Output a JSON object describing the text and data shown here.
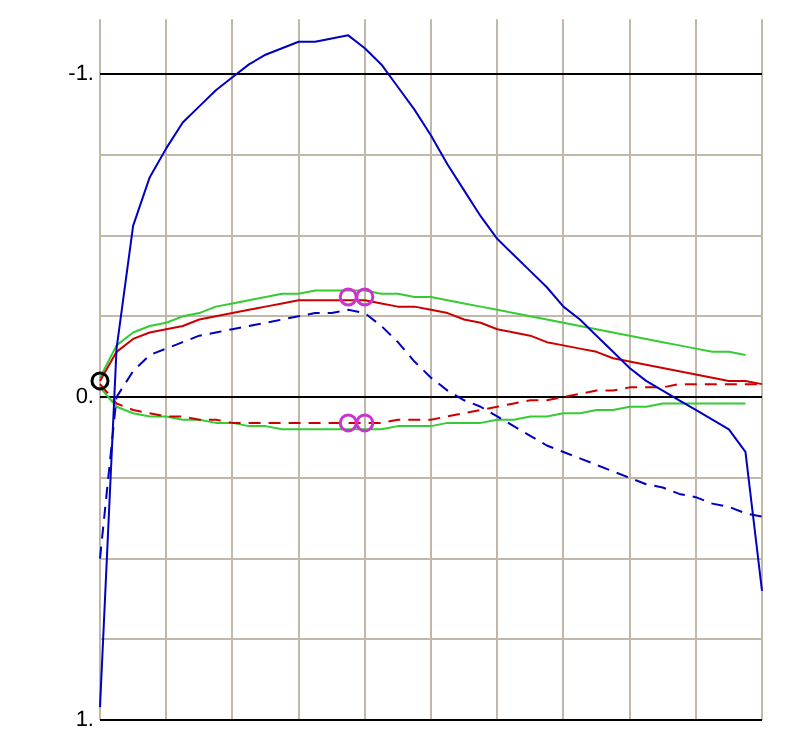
{
  "chart_data": {
    "type": "line",
    "ylim": [
      1,
      -1.17
    ],
    "tick_labels": "y",
    "grid": true,
    "marker": "none",
    "categories": [
      null,
      null,
      null,
      null,
      null,
      null,
      null,
      null,
      null,
      null,
      null,
      null,
      null,
      null,
      null,
      null,
      null,
      null,
      null,
      null,
      null,
      null,
      null,
      null,
      null,
      null,
      null,
      null,
      null,
      null,
      null,
      null,
      null,
      null,
      null,
      null,
      null,
      null,
      null,
      null,
      null
    ],
    "yticks": [
      {
        "value": -1,
        "label": "-1."
      },
      {
        "value": -0.75,
        "label": null
      },
      {
        "value": -0.5,
        "label": null
      },
      {
        "value": -0.25,
        "label": null
      },
      {
        "value": 0,
        "label": "0."
      },
      {
        "value": 0.25,
        "label": null
      },
      {
        "value": 0.5,
        "label": null
      },
      {
        "value": 0.75,
        "label": null
      },
      {
        "value": 1,
        "label": "1."
      }
    ],
    "series": [
      {
        "color": "#0000c0",
        "line_style": "solid",
        "values": [
          0.96,
          -0.15,
          -0.53,
          -0.68,
          -0.77,
          -0.85,
          -0.9,
          -0.95,
          -0.99,
          -1.03,
          -1.06,
          -1.08,
          -1.1,
          -1.1,
          -1.11,
          -1.12,
          -1.08,
          -1.03,
          -0.96,
          -0.89,
          -0.81,
          -0.72,
          -0.64,
          -0.56,
          -0.49,
          -0.44,
          -0.39,
          -0.34,
          -0.28,
          -0.24,
          -0.19,
          -0.14,
          -0.09,
          -0.05,
          -0.02,
          0.01,
          0.04,
          0.07,
          0.1,
          0.17,
          0.6
        ]
      },
      {
        "color": "#0000c0",
        "line_style": "dashed",
        "values": [
          0.5,
          0,
          -0.08,
          -0.13,
          -0.15,
          -0.17,
          -0.19,
          -0.2,
          -0.21,
          -0.22,
          -0.23,
          -0.24,
          -0.25,
          -0.26,
          -0.26,
          -0.27,
          -0.26,
          -0.22,
          -0.17,
          -0.11,
          -0.06,
          -0.02,
          0.01,
          0.03,
          0.06,
          0.09,
          0.12,
          0.15,
          0.17,
          0.19,
          0.21,
          0.23,
          0.25,
          0.27,
          0.28,
          0.3,
          0.31,
          0.33,
          0.34,
          0.36,
          0.37
        ]
      },
      {
        "color": "#cc0000",
        "line_style": "solid",
        "values": [
          -0.05,
          -0.14,
          -0.18,
          -0.2,
          -0.21,
          -0.22,
          -0.24,
          -0.25,
          -0.26,
          -0.27,
          -0.28,
          -0.29,
          -0.3,
          -0.3,
          -0.3,
          -0.3,
          -0.3,
          -0.29,
          -0.28,
          -0.28,
          -0.27,
          -0.26,
          -0.24,
          -0.23,
          -0.21,
          -0.2,
          -0.19,
          -0.17,
          -0.16,
          -0.15,
          -0.14,
          -0.12,
          -0.11,
          -0.1,
          -0.09,
          -0.08,
          -0.07,
          -0.06,
          -0.05,
          -0.05,
          -0.04
        ]
      },
      {
        "color": "#cc0000",
        "line_style": "dashed",
        "values": [
          -0.04,
          0.02,
          0.04,
          0.05,
          0.06,
          0.06,
          0.07,
          0.07,
          0.08,
          0.08,
          0.08,
          0.08,
          0.08,
          0.08,
          0.08,
          0.08,
          0.08,
          0.08,
          0.07,
          0.07,
          0.07,
          0.06,
          0.05,
          0.04,
          0.03,
          0.02,
          0.01,
          0.01,
          0,
          -0.01,
          -0.02,
          -0.02,
          -0.03,
          -0.03,
          -0.03,
          -0.04,
          -0.04,
          -0.04,
          -0.04,
          -0.04,
          -0.04
        ]
      },
      {
        "color": "#33cc33",
        "line_style": "solid",
        "values": [
          -0.06,
          -0.16,
          -0.2,
          -0.22,
          -0.23,
          -0.25,
          -0.26,
          -0.28,
          -0.29,
          -0.3,
          -0.31,
          -0.32,
          -0.32,
          -0.33,
          -0.33,
          -0.33,
          -0.33,
          -0.32,
          -0.32,
          -0.31,
          -0.31,
          -0.3,
          -0.29,
          -0.28,
          -0.27,
          -0.26,
          -0.25,
          -0.24,
          -0.23,
          -0.22,
          -0.21,
          -0.2,
          -0.19,
          -0.18,
          -0.17,
          -0.16,
          -0.15,
          -0.14,
          -0.14,
          -0.13,
          null
        ]
      },
      {
        "color": "#33cc33",
        "line_style": "solid",
        "values": [
          -0.03,
          0.03,
          0.05,
          0.06,
          0.06,
          0.07,
          0.07,
          0.08,
          0.08,
          0.09,
          0.09,
          0.1,
          0.1,
          0.1,
          0.1,
          0.1,
          0.1,
          0.1,
          0.09,
          0.09,
          0.09,
          0.08,
          0.08,
          0.08,
          0.07,
          0.07,
          0.06,
          0.06,
          0.05,
          0.05,
          0.04,
          0.04,
          0.03,
          0.03,
          0.02,
          0.02,
          0.02,
          0.02,
          0.02,
          0.02,
          null
        ]
      },
      {
        "type": "scatter",
        "marker": "circle",
        "color": "#cc33cc",
        "values": [
          null,
          null,
          null,
          null,
          null,
          null,
          null,
          null,
          null,
          null,
          null,
          null,
          null,
          null,
          null,
          -0.31,
          -0.31,
          null,
          null,
          null,
          null,
          null,
          null,
          null,
          null,
          null,
          null,
          null,
          null,
          null,
          null,
          null,
          null,
          null,
          null,
          null,
          null,
          null,
          null,
          null,
          null
        ]
      },
      {
        "type": "scatter",
        "marker": "circle",
        "color": "#cc33cc",
        "values": [
          null,
          null,
          null,
          null,
          null,
          null,
          null,
          null,
          null,
          null,
          null,
          null,
          null,
          null,
          null,
          0.08,
          0.08,
          null,
          null,
          null,
          null,
          null,
          null,
          null,
          null,
          null,
          null,
          null,
          null,
          null,
          null,
          null,
          null,
          null,
          null,
          null,
          null,
          null,
          null,
          null,
          null
        ]
      },
      {
        "type": "scatter",
        "marker": "circle",
        "color": "#000000",
        "values": [
          -0.05,
          null,
          null,
          null,
          null,
          null,
          null,
          null,
          null,
          null,
          null,
          null,
          null,
          null,
          null,
          null,
          null,
          null,
          null,
          null,
          null,
          null,
          null,
          null,
          null,
          null,
          null,
          null,
          null,
          null,
          null,
          null,
          null,
          null,
          null,
          null,
          null,
          null,
          null,
          null,
          null
        ]
      }
    ]
  }
}
